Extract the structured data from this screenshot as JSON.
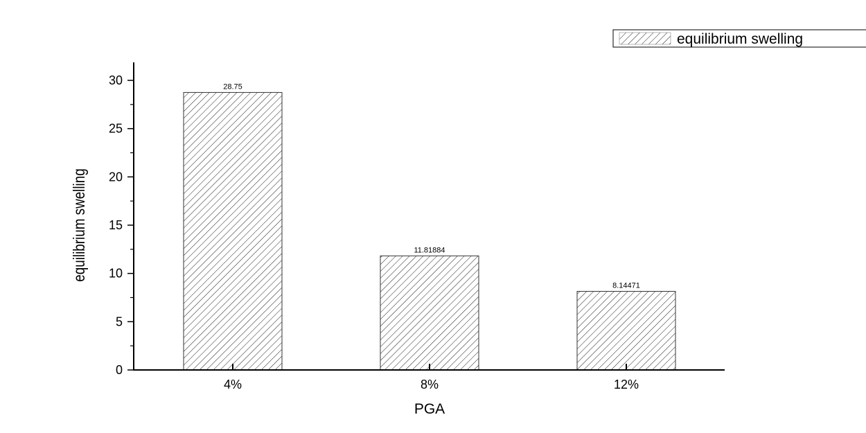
{
  "chart_data": {
    "type": "bar",
    "title": "",
    "xlabel": "PGA",
    "ylabel": "equilibrium swelling",
    "categories": [
      "4%",
      "8%",
      "12%"
    ],
    "series": [
      {
        "name": "equilibrium swelling",
        "values": [
          28.75,
          11.81884,
          8.14471
        ],
        "labels": [
          "28.75",
          "11.81884",
          "8.14471"
        ]
      }
    ],
    "ylim": [
      0,
      32
    ],
    "yticks": [
      0,
      5,
      10,
      15,
      20,
      25,
      30
    ],
    "grid": false,
    "legend": "top-right",
    "bar_fill": "hatched",
    "color": "#000000"
  }
}
